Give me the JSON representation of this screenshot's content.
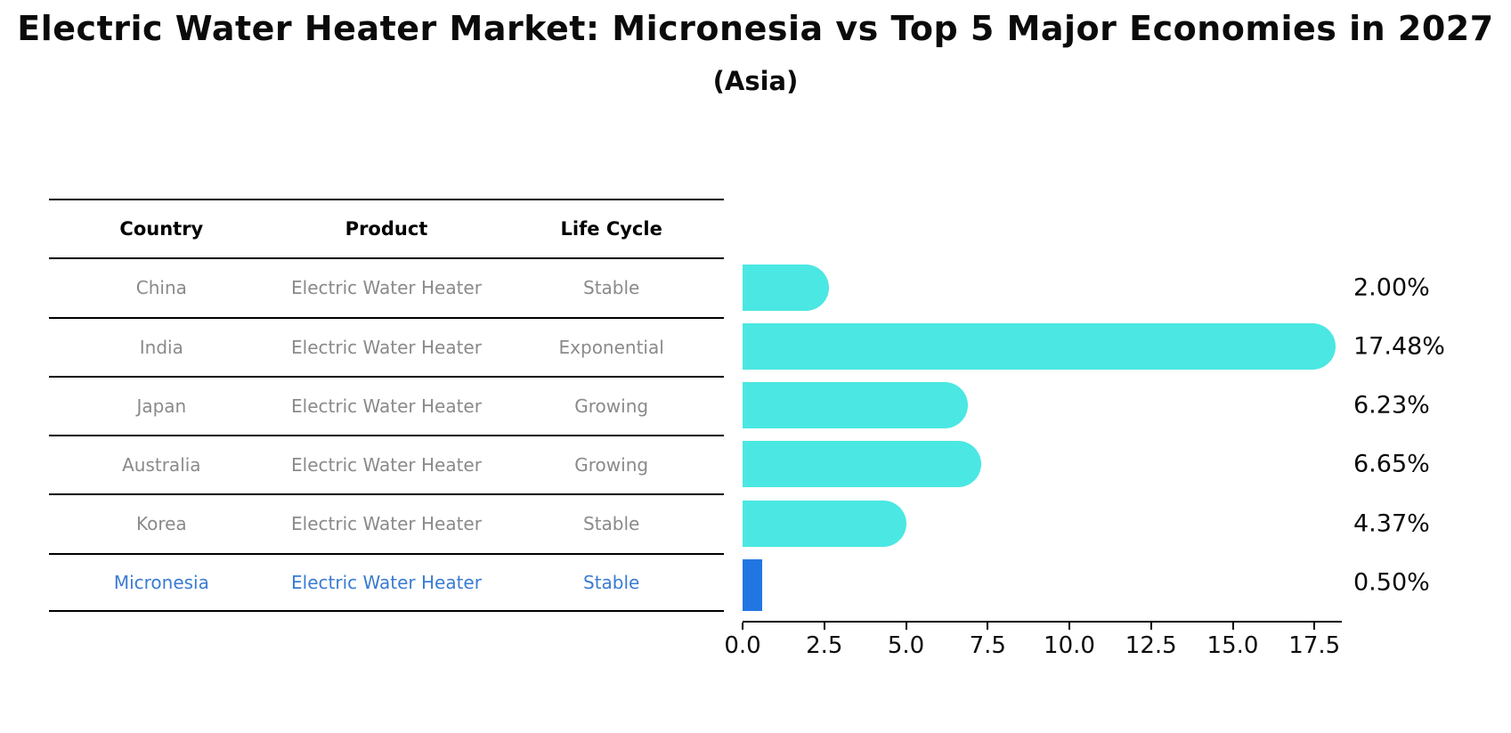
{
  "title": "Electric Water Heater Market: Micronesia vs Top 5 Major Economies in 2027",
  "subtitle": "(Asia)",
  "table": {
    "headers": [
      "Country",
      "Product",
      "Life Cycle"
    ],
    "rows": [
      {
        "country": "China",
        "product": "Electric Water Heater",
        "life_cycle": "Stable",
        "highlight": false
      },
      {
        "country": "India",
        "product": "Electric Water Heater",
        "life_cycle": "Exponential",
        "highlight": false
      },
      {
        "country": "Japan",
        "product": "Electric Water Heater",
        "life_cycle": "Growing",
        "highlight": false
      },
      {
        "country": "Australia",
        "product": "Electric Water Heater",
        "life_cycle": "Growing",
        "highlight": false
      },
      {
        "country": "Korea",
        "product": "Electric Water Heater",
        "life_cycle": "Stable",
        "highlight": false
      },
      {
        "country": "Micronesia",
        "product": "Electric Water Heater",
        "life_cycle": "Stable",
        "highlight": true
      }
    ]
  },
  "chart_data": {
    "type": "bar",
    "orientation": "horizontal",
    "title": "Electric Water Heater Market: Micronesia vs Top 5 Major Economies in 2027",
    "subtitle": "(Asia)",
    "categories": [
      "China",
      "India",
      "Japan",
      "Australia",
      "Korea",
      "Micronesia"
    ],
    "values": [
      2.0,
      17.48,
      6.23,
      6.65,
      4.37,
      0.5
    ],
    "value_labels": [
      "2.00%",
      "17.48%",
      "6.23%",
      "6.65%",
      "4.37%",
      "0.50%"
    ],
    "x_ticks": [
      0.0,
      2.5,
      5.0,
      7.5,
      10.0,
      12.5,
      15.0,
      17.5
    ],
    "x_tick_labels": [
      "0.0",
      "2.5",
      "5.0",
      "7.5",
      "10.0",
      "12.5",
      "15.0",
      "17.5"
    ],
    "xlim": [
      0,
      18.3
    ],
    "grid": false,
    "legend": "none",
    "bar_color": "#4BE7E2",
    "highlight_color": "#2276E3",
    "highlight_text_color": "#3A7CD1",
    "highlight_index": 5,
    "value_label_color": "#0b0b0b"
  }
}
